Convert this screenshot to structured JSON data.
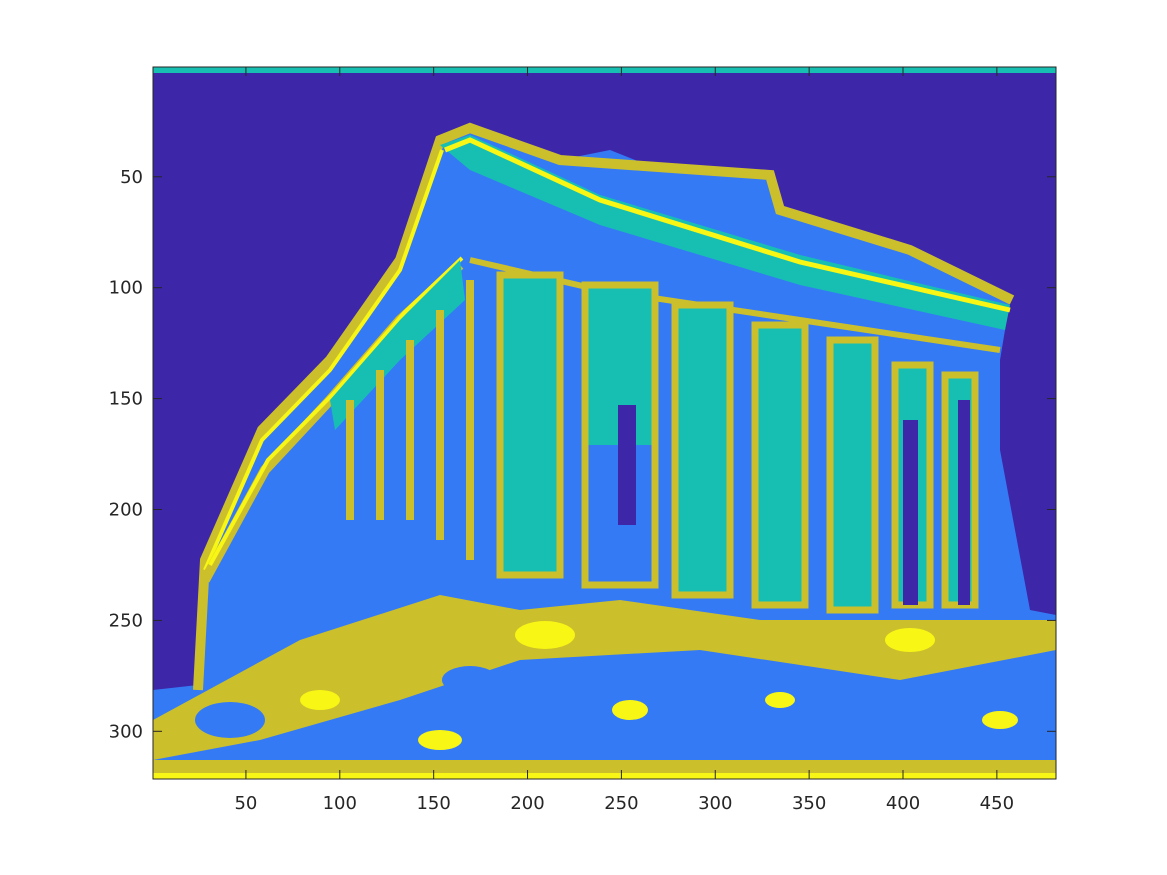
{
  "chart_data": {
    "type": "heatmap",
    "title": "",
    "xlabel": "",
    "ylabel": "",
    "xlim": [
      0.5,
      481.5
    ],
    "ylim": [
      0.5,
      321.5
    ],
    "y_direction": "reverse",
    "x_ticks": [
      50,
      100,
      150,
      200,
      250,
      300,
      350,
      400,
      450
    ],
    "y_ticks": [
      50,
      100,
      150,
      200,
      250,
      300
    ],
    "grid": false,
    "legend": "none",
    "colormap": "parula",
    "classes": [
      {
        "level": 1,
        "color": "#3e26a8"
      },
      {
        "level": 2,
        "color": "#347af5"
      },
      {
        "level": 3,
        "color": "#17bfb3"
      },
      {
        "level": 4,
        "color": "#ccbf2c"
      },
      {
        "level": 5,
        "color": "#f8f615"
      }
    ],
    "content_description": "Segmented image of a temple facade with columns, rendered as 5 color classes"
  }
}
